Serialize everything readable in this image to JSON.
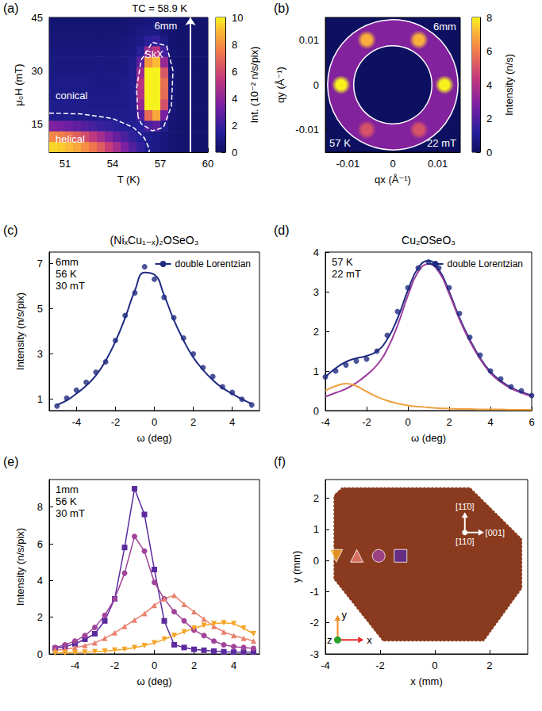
{
  "chart_data": [
    {
      "type": "heatmap",
      "panel": "(a)",
      "xlabel": "T (K)",
      "ylabel": "μ₀H (mT)",
      "xlim": [
        50,
        60
      ],
      "xticks": [
        51,
        54,
        57,
        60
      ],
      "ylim": [
        7,
        45
      ],
      "yticks": [
        15,
        30,
        45
      ],
      "x": [
        50.25,
        50.75,
        51.25,
        51.75,
        52.25,
        52.75,
        53.25,
        53.75,
        54.25,
        54.75,
        55.25,
        55.75,
        56.25,
        56.75,
        57.25,
        57.75,
        58.25,
        58.75,
        59.25,
        59.75
      ],
      "y": [
        8.5,
        11.5,
        14.5,
        17.5,
        20.5,
        23.5,
        26.5,
        29.5,
        32.5,
        35.5,
        38.5,
        41.5,
        44.5
      ],
      "cells": [
        [
          9.5,
          9.3,
          9.0,
          8.6,
          8.0,
          7.4,
          6.6,
          5.6,
          4.6,
          3.6,
          2.6,
          1.8,
          1.2,
          0.9,
          0.7,
          0.5,
          0.4,
          0.3,
          0.3,
          0.3
        ],
        [
          7.8,
          7.6,
          7.2,
          6.7,
          6.1,
          5.4,
          4.6,
          3.8,
          3.0,
          2.4,
          1.8,
          1.4,
          1.2,
          1.0,
          0.7,
          0.5,
          0.4,
          0.3,
          0.3,
          0.3
        ],
        [
          3.6,
          3.4,
          3.2,
          2.9,
          2.6,
          2.3,
          2.0,
          1.8,
          1.6,
          1.4,
          1.3,
          1.5,
          2.4,
          2.8,
          1.2,
          0.5,
          0.4,
          0.3,
          0.3,
          0.3
        ],
        [
          1.2,
          1.2,
          1.2,
          1.1,
          1.1,
          1.1,
          1.1,
          1.1,
          1.1,
          1.1,
          1.2,
          2.6,
          7.0,
          8.6,
          3.4,
          0.6,
          0.4,
          0.3,
          0.3,
          0.3
        ],
        [
          1.1,
          1.1,
          1.1,
          1.1,
          1.1,
          1.0,
          1.0,
          1.0,
          1.0,
          1.0,
          1.2,
          4.2,
          10,
          10,
          6.2,
          0.7,
          0.4,
          0.3,
          0.3,
          0.3
        ],
        [
          1.0,
          1.0,
          1.0,
          1.0,
          1.0,
          1.0,
          1.0,
          1.0,
          1.0,
          1.0,
          1.3,
          5.0,
          10,
          10,
          7.0,
          0.7,
          0.4,
          0.3,
          0.3,
          0.3
        ],
        [
          1.0,
          1.0,
          1.0,
          1.0,
          1.0,
          0.9,
          0.9,
          0.9,
          0.9,
          1.0,
          1.3,
          5.2,
          10,
          10,
          7.2,
          0.7,
          0.4,
          0.3,
          0.3,
          0.3
        ],
        [
          0.9,
          0.9,
          0.9,
          0.9,
          0.9,
          0.9,
          0.9,
          0.9,
          0.9,
          0.9,
          1.2,
          4.4,
          10,
          10,
          6.4,
          0.6,
          0.4,
          0.3,
          0.3,
          0.3
        ],
        [
          0.8,
          0.8,
          0.8,
          0.8,
          0.8,
          0.8,
          0.8,
          0.8,
          0.8,
          0.9,
          1.1,
          2.8,
          8.2,
          9.0,
          4.2,
          0.5,
          0.4,
          0.3,
          0.3,
          0.3
        ],
        [
          0.7,
          0.7,
          0.7,
          0.7,
          0.7,
          0.7,
          0.7,
          0.7,
          0.7,
          0.8,
          0.9,
          1.6,
          4.4,
          5.2,
          2.2,
          0.5,
          0.4,
          0.3,
          0.3,
          0.3
        ],
        [
          0.6,
          0.6,
          0.6,
          0.6,
          0.6,
          0.6,
          0.6,
          0.6,
          0.6,
          0.7,
          0.8,
          1.0,
          1.6,
          1.8,
          1.0,
          0.4,
          0.3,
          0.3,
          0.3,
          0.3
        ],
        [
          0.5,
          0.5,
          0.5,
          0.5,
          0.5,
          0.5,
          0.5,
          0.5,
          0.5,
          0.6,
          0.7,
          0.8,
          0.9,
          0.9,
          0.6,
          0.4,
          0.3,
          0.3,
          0.3,
          0.3
        ],
        [
          0.4,
          0.4,
          0.4,
          0.4,
          0.4,
          0.4,
          0.4,
          0.4,
          0.4,
          0.5,
          0.6,
          0.6,
          0.7,
          0.7,
          0.5,
          0.4,
          0.3,
          0.3,
          0.3,
          0.3
        ]
      ],
      "colorbar": {
        "label": "Int. (10⁻² n/s/pix)",
        "range": [
          0,
          10
        ],
        "ticks": [
          0,
          2,
          4,
          6,
          8,
          10
        ]
      },
      "annotations": [
        "6mm",
        "SkX",
        "conical",
        "helical"
      ],
      "tc_label": "TC = 58.9 K",
      "tc_line": 58.9,
      "boundaries": [
        [
          [
            50,
            18
          ],
          [
            52,
            17.8
          ],
          [
            54,
            16.5
          ],
          [
            55.3,
            14
          ],
          [
            56,
            11
          ],
          [
            56.3,
            8
          ],
          [
            56.3,
            7
          ]
        ],
        [
          [
            55.6,
            17
          ],
          [
            55.5,
            25
          ],
          [
            55.8,
            33
          ],
          [
            56.5,
            38
          ],
          [
            57.4,
            37
          ],
          [
            57.8,
            30
          ],
          [
            57.7,
            20
          ],
          [
            57.2,
            14
          ],
          [
            56.5,
            13
          ],
          [
            55.8,
            15
          ],
          [
            55.6,
            17
          ]
        ]
      ]
    },
    {
      "type": "diffraction",
      "panel": "(b)",
      "xlabel": "qx (Å⁻¹)",
      "ylabel": "qy (Å⁻¹)",
      "xlim": [
        -0.015,
        0.015
      ],
      "xticks": [
        -0.01,
        0,
        0.01
      ],
      "ylim": [
        -0.015,
        0.015
      ],
      "yticks": [
        -0.01,
        0,
        0.01
      ],
      "spots": [
        {
          "qx": 0.0115,
          "qy": 0,
          "intensity": 8
        },
        {
          "qx": 0.0058,
          "qy": 0.01,
          "intensity": 7
        },
        {
          "qx": -0.0058,
          "qy": 0.01,
          "intensity": 7
        },
        {
          "qx": -0.0115,
          "qy": 0,
          "intensity": 8
        },
        {
          "qx": -0.0058,
          "qy": -0.01,
          "intensity": 5
        },
        {
          "qx": 0.0058,
          "qy": -0.01,
          "intensity": 5
        }
      ],
      "ring_intensity": 3,
      "integration_ring": [
        0.0087,
        0.0145
      ],
      "colorbar": {
        "label": "Intensity (n/s)",
        "range": [
          0,
          8
        ],
        "ticks": [
          0,
          2,
          4,
          6,
          8
        ]
      },
      "annotations": [
        "6mm",
        "57 K",
        "22 mT"
      ]
    },
    {
      "type": "scatter",
      "panel": "(c)",
      "title": "(NiₓCu₁₋ₓ)₂OSeO₃",
      "xlabel": "ω (deg)",
      "ylabel": "Intensity (n/s/pix)",
      "xlim": [
        -5.4,
        5.4
      ],
      "xticks": [
        -4,
        -2,
        0,
        2,
        4
      ],
      "ylim": [
        0.5,
        7.5
      ],
      "yticks": [
        1,
        3,
        5,
        7
      ],
      "legend": "upper right",
      "series": [
        {
          "type": "scatter",
          "marker": "circle",
          "color": "#1f2a80",
          "x": [
            -5,
            -4.5,
            -4,
            -3.5,
            -3,
            -2.5,
            -2,
            -1.5,
            -1,
            -0.5,
            0,
            0.5,
            1,
            1.5,
            2,
            2.5,
            3,
            3.5,
            4,
            4.5,
            5
          ],
          "values": [
            0.7,
            1.05,
            1.4,
            1.75,
            2.2,
            2.65,
            3.6,
            4.7,
            5.7,
            6.85,
            6.3,
            5.5,
            4.6,
            3.7,
            3.0,
            2.4,
            2.0,
            1.55,
            1.3,
            1.0,
            0.75
          ]
        },
        {
          "type": "line",
          "name": "double Lorentzian",
          "color": "#1f2a80",
          "x": [
            -5,
            -4.5,
            -4,
            -3.5,
            -3,
            -2.5,
            -2,
            -1.5,
            -1,
            -0.5,
            0,
            0.5,
            1,
            1.5,
            2,
            2.5,
            3,
            3.5,
            4,
            4.5,
            5
          ],
          "values": [
            0.75,
            0.95,
            1.25,
            1.6,
            2.05,
            2.7,
            3.55,
            4.6,
            5.8,
            6.6,
            6.5,
            5.6,
            4.5,
            3.6,
            2.85,
            2.3,
            1.85,
            1.5,
            1.25,
            1.0,
            0.8
          ]
        }
      ],
      "annotations": [
        "6mm",
        "56 K",
        "30 mT"
      ]
    },
    {
      "type": "scatter",
      "panel": "(d)",
      "title": "Cu₂OSeO₃",
      "xlabel": "ω (deg)",
      "xlim": [
        -4,
        6
      ],
      "xticks": [
        -4,
        -2,
        0,
        2,
        4,
        6
      ],
      "ylim": [
        0,
        4
      ],
      "yticks": [
        0,
        1,
        2,
        3,
        4
      ],
      "legend": "upper right",
      "series": [
        {
          "type": "scatter",
          "marker": "circle",
          "color": "#1f2a80",
          "x": [
            -4,
            -3.5,
            -3,
            -2.5,
            -2,
            -1.5,
            -1,
            -0.5,
            0,
            0.5,
            1,
            1.5,
            2,
            2.5,
            3,
            3.5,
            4,
            4.5,
            5,
            5.5,
            6
          ],
          "values": [
            0.85,
            1.0,
            1.15,
            1.25,
            1.3,
            1.5,
            1.9,
            2.5,
            3.1,
            3.6,
            3.75,
            3.6,
            3.1,
            2.45,
            1.85,
            1.4,
            1.0,
            0.8,
            0.6,
            0.5,
            0.38
          ]
        },
        {
          "type": "line",
          "name": "double Lorentzian",
          "color": "#1f2a80",
          "x": [
            -4,
            -3.5,
            -3,
            -2.5,
            -2,
            -1.5,
            -1,
            -0.5,
            0,
            0.5,
            1,
            1.5,
            2,
            2.5,
            3,
            3.5,
            4,
            4.5,
            5,
            5.5,
            6
          ],
          "values": [
            0.85,
            1.07,
            1.23,
            1.32,
            1.38,
            1.5,
            1.8,
            2.33,
            3.03,
            3.6,
            3.78,
            3.56,
            3.0,
            2.34,
            1.79,
            1.33,
            0.98,
            0.75,
            0.58,
            0.47,
            0.38
          ]
        },
        {
          "type": "line",
          "color": "#9b3d9b",
          "x": [
            -4,
            -3.5,
            -3,
            -2.5,
            -2,
            -1.5,
            -1,
            -0.5,
            0,
            0.5,
            1,
            1.5,
            2,
            2.5,
            3,
            3.5,
            4,
            4.5,
            5,
            5.5,
            6
          ],
          "values": [
            0.35,
            0.45,
            0.55,
            0.7,
            0.9,
            1.15,
            1.55,
            2.15,
            2.9,
            3.5,
            3.7,
            3.5,
            2.95,
            2.3,
            1.75,
            1.3,
            0.95,
            0.72,
            0.56,
            0.45,
            0.36
          ]
        },
        {
          "type": "line",
          "color": "#f0a040",
          "x": [
            -4,
            -3.5,
            -3,
            -2.5,
            -2,
            -1.5,
            -1,
            -0.5,
            0,
            0.5,
            1,
            1.5,
            2,
            2.5,
            3,
            3.5,
            4,
            4.5,
            5,
            5.5,
            6
          ],
          "values": [
            0.5,
            0.62,
            0.68,
            0.62,
            0.48,
            0.35,
            0.25,
            0.18,
            0.13,
            0.1,
            0.08,
            0.06,
            0.05,
            0.04,
            0.04,
            0.03,
            0.03,
            0.03,
            0.02,
            0.02,
            0.02
          ]
        }
      ],
      "annotations": [
        "57 K",
        "22 mT"
      ]
    },
    {
      "type": "line",
      "panel": "(e)",
      "xlabel": "ω (deg)",
      "ylabel": "Intensity (n/s/pix)",
      "xlim": [
        -5.3,
        5.3
      ],
      "xticks": [
        -4,
        -2,
        0,
        2,
        4
      ],
      "ylim": [
        0,
        9.5
      ],
      "yticks": [
        0,
        2,
        4,
        6,
        8
      ],
      "series": [
        {
          "marker": "square",
          "color": "#5b2a9e",
          "x": [
            -5,
            -4.5,
            -4,
            -3.5,
            -3,
            -2.5,
            -2,
            -1.5,
            -1,
            -0.5,
            0,
            0.5,
            1,
            1.5,
            2,
            2.5,
            3,
            3.5,
            4,
            4.5,
            5
          ],
          "values": [
            0.3,
            0.4,
            0.55,
            0.8,
            1.1,
            1.8,
            3.0,
            5.8,
            9.0,
            7.6,
            4.6,
            1.8,
            0.5,
            0.35,
            0.25,
            0.2,
            0.15,
            0.12,
            0.1,
            0.1,
            0.1
          ]
        },
        {
          "marker": "circle",
          "color": "#a0449a",
          "x": [
            -5,
            -4.5,
            -4,
            -3.5,
            -3,
            -2.5,
            -2,
            -1.5,
            -1,
            -0.5,
            0,
            0.5,
            1,
            1.5,
            2,
            2.5,
            3,
            3.5,
            4,
            4.5,
            5
          ],
          "values": [
            0.35,
            0.5,
            0.7,
            1.0,
            1.45,
            2.1,
            3.0,
            4.4,
            6.4,
            5.6,
            3.9,
            3.0,
            2.3,
            1.8,
            1.3,
            1.0,
            0.7,
            0.5,
            0.4,
            0.35,
            0.3
          ]
        },
        {
          "marker": "triangle",
          "color": "#e8806f",
          "x": [
            -5,
            -4.5,
            -4,
            -3.5,
            -3,
            -2.5,
            -2,
            -1.5,
            -1,
            -0.5,
            0,
            0.5,
            1,
            1.5,
            2,
            2.5,
            3,
            3.5,
            4,
            4.5,
            5
          ],
          "values": [
            0.2,
            0.25,
            0.35,
            0.45,
            0.6,
            0.85,
            1.15,
            1.5,
            1.85,
            2.2,
            2.65,
            3.0,
            3.2,
            2.7,
            2.3,
            1.9,
            1.5,
            1.2,
            1.0,
            0.85,
            0.7
          ]
        },
        {
          "marker": "triangle_down",
          "color": "#f4a526",
          "x": [
            -5,
            -4.5,
            -4,
            -3.5,
            -3,
            -2.5,
            -2,
            -1.5,
            -1,
            -0.5,
            0,
            0.5,
            1,
            1.5,
            2,
            2.5,
            3,
            3.5,
            4,
            4.5,
            5
          ],
          "values": [
            0.05,
            0.05,
            0.08,
            0.1,
            0.12,
            0.15,
            0.2,
            0.25,
            0.35,
            0.45,
            0.6,
            0.8,
            1.0,
            1.2,
            1.4,
            1.55,
            1.65,
            1.7,
            1.65,
            1.4,
            1.1
          ]
        }
      ],
      "annotations": [
        "1mm",
        "56 K",
        "30 mT"
      ]
    },
    {
      "type": "map",
      "panel": "(f)",
      "xlabel": "x (mm)",
      "ylabel": "y (mm)",
      "xlim": [
        -4,
        3.4
      ],
      "xticks": [
        -4,
        -2,
        0,
        2
      ],
      "ylim": [
        -3,
        2.6
      ],
      "yticks": [
        -3,
        -2,
        -1,
        0,
        1,
        2
      ],
      "outline": [
        [
          -3.7,
          2.1
        ],
        [
          -3.4,
          2.35
        ],
        [
          1.3,
          2.35
        ],
        [
          3.2,
          0.7
        ],
        [
          3.2,
          -0.9
        ],
        [
          1.8,
          -2.6
        ],
        [
          -1.9,
          -2.6
        ],
        [
          -3.7,
          -0.6
        ]
      ],
      "color": "#8a3a1e",
      "series": [
        {
          "marker": "triangle_down",
          "color": "#f4a526",
          "x": -3.6,
          "y": 0.15
        },
        {
          "marker": "triangle",
          "color": "#e8806f",
          "x": -2.85,
          "y": 0.15
        },
        {
          "marker": "circle",
          "color": "#a0449a",
          "x": -2.05,
          "y": 0.15
        },
        {
          "marker": "square",
          "color": "#5b2a9e",
          "x": -1.25,
          "y": 0.15
        }
      ],
      "directions": [
        "[11̄0]",
        "[001]",
        "[110]"
      ],
      "axes": [
        "x",
        "y",
        "z"
      ]
    }
  ]
}
